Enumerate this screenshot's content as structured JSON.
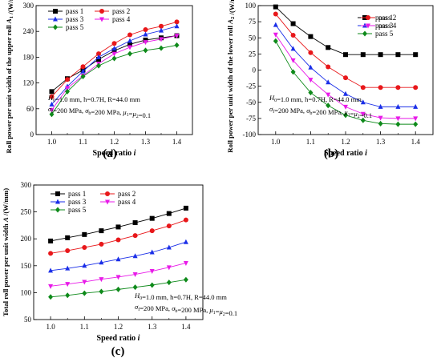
{
  "chart_data": [
    {
      "type": "line",
      "panel_label": "(a)",
      "ylabel_parts": [
        "Roll power per unit width of the upper roll",
        "A",
        "1",
        " /(W/mm)"
      ],
      "xlabel": [
        "Speed ratio ",
        "i"
      ],
      "xlim": [
        0.95,
        1.45
      ],
      "ylim": [
        0,
        300
      ],
      "xticks": [
        "1.0",
        "1.1",
        "1.2",
        "1.3",
        "1.4"
      ],
      "yticks": [
        "0",
        "60",
        "120",
        "180",
        "240",
        "300"
      ],
      "legend_position": "top-left",
      "annotation": [
        "H0=1.0 mm, h=0.7H, R=44.0 mm",
        "σf=200 MPa, σb=200 MPa, μ1=μ2=0.1"
      ],
      "x": [
        1.0,
        1.05,
        1.1,
        1.15,
        1.2,
        1.25,
        1.3,
        1.35,
        1.4
      ],
      "series": [
        {
          "name": "pass 1",
          "color": "#000000",
          "marker": "square",
          "values": [
            100,
            130,
            150,
            175,
            195,
            210,
            220,
            225,
            230
          ]
        },
        {
          "name": "pass 2",
          "color": "#e8171a",
          "marker": "circle",
          "values": [
            88,
            128,
            158,
            188,
            212,
            232,
            244,
            252,
            262
          ]
        },
        {
          "name": "pass 3",
          "color": "#1a2ee8",
          "marker": "triangle-up",
          "values": [
            70,
            112,
            147,
            180,
            200,
            218,
            233,
            242,
            252
          ]
        },
        {
          "name": "pass 4",
          "color": "#e81ae8",
          "marker": "triangle-down",
          "values": [
            57,
            108,
            137,
            165,
            188,
            203,
            215,
            222,
            230
          ]
        },
        {
          "name": "pass 5",
          "color": "#0e8a1a",
          "marker": "diamond",
          "values": [
            47,
            100,
            135,
            160,
            177,
            188,
            196,
            201,
            208
          ]
        }
      ]
    },
    {
      "type": "line",
      "panel_label": "(b)",
      "ylabel_parts": [
        "Roll power per unit width of the lower roll",
        "A",
        "2",
        " /(W/mm)"
      ],
      "xlabel": [
        "Speed ratio ",
        "i"
      ],
      "xlim": [
        0.95,
        1.45
      ],
      "ylim": [
        -100,
        100
      ],
      "xticks": [
        "1.0",
        "1.1",
        "1.2",
        "1.3",
        "1.4"
      ],
      "yticks": [
        "-100",
        "-75",
        "-50",
        "-25",
        "0",
        "25",
        "50",
        "75",
        "100"
      ],
      "legend_position": "top-right",
      "annotation": [
        "H0=1.0 mm, h=0.7H, R=44.0 mm",
        "σf=200 MPa, σb=200 MPa, μ1=μ2=0.1"
      ],
      "x": [
        1.0,
        1.05,
        1.1,
        1.15,
        1.2,
        1.25,
        1.3,
        1.35,
        1.4
      ],
      "series": [
        {
          "name": "pass 1",
          "color": "#000000",
          "marker": "square",
          "values": [
            98,
            72,
            52,
            35,
            24,
            24,
            24,
            24,
            24
          ]
        },
        {
          "name": "pass 2",
          "color": "#e8171a",
          "marker": "circle",
          "values": [
            87,
            54,
            27,
            5,
            -12,
            -27,
            -27,
            -27,
            -27
          ]
        },
        {
          "name": "pass 3",
          "color": "#1a2ee8",
          "marker": "triangle-up",
          "values": [
            70,
            33,
            4,
            -19,
            -37,
            -50,
            -57,
            -57,
            -57
          ]
        },
        {
          "name": "pass 4",
          "color": "#e81ae8",
          "marker": "triangle-down",
          "values": [
            55,
            15,
            -15,
            -38,
            -57,
            -68,
            -74,
            -75,
            -75
          ]
        },
        {
          "name": "pass 5",
          "color": "#0e8a1a",
          "marker": "diamond",
          "values": [
            45,
            -3,
            -35,
            -55,
            -70,
            -78,
            -83,
            -84,
            -84
          ]
        }
      ]
    },
    {
      "type": "line",
      "panel_label": "(c)",
      "ylabel_parts": [
        "Total roll power per unit width ",
        "A",
        "",
        " /(W/mm)"
      ],
      "xlabel": [
        "Speed ratio ",
        "i"
      ],
      "xlim": [
        0.95,
        1.45
      ],
      "ylim": [
        50,
        300
      ],
      "xticks": [
        "1.0",
        "1.1",
        "1.2",
        "1.3",
        "1.4"
      ],
      "yticks": [
        "50",
        "100",
        "150",
        "200",
        "250",
        "300"
      ],
      "legend_position": "top-left",
      "annotation": [
        "H0=1.0 mm, h=0.7H, R=44.0 mm",
        "σf=200 MPa, σb=200 MPa, μ1=μ2=0.1"
      ],
      "x": [
        1.0,
        1.05,
        1.1,
        1.15,
        1.2,
        1.25,
        1.3,
        1.35,
        1.4
      ],
      "series": [
        {
          "name": "pass 1",
          "color": "#000000",
          "marker": "square",
          "values": [
            196,
            202,
            208,
            215,
            222,
            230,
            238,
            247,
            257
          ]
        },
        {
          "name": "pass 2",
          "color": "#e8171a",
          "marker": "circle",
          "values": [
            173,
            178,
            184,
            190,
            198,
            206,
            215,
            224,
            235
          ]
        },
        {
          "name": "pass 3",
          "color": "#1a2ee8",
          "marker": "triangle-up",
          "values": [
            141,
            145,
            150,
            156,
            162,
            168,
            175,
            184,
            194
          ]
        },
        {
          "name": "pass 4",
          "color": "#e81ae8",
          "marker": "triangle-down",
          "values": [
            112,
            116,
            120,
            125,
            129,
            134,
            140,
            147,
            155
          ]
        },
        {
          "name": "pass 5",
          "color": "#0e8a1a",
          "marker": "diamond",
          "values": [
            92,
            95,
            99,
            102,
            106,
            110,
            114,
            119,
            124
          ]
        }
      ]
    }
  ]
}
